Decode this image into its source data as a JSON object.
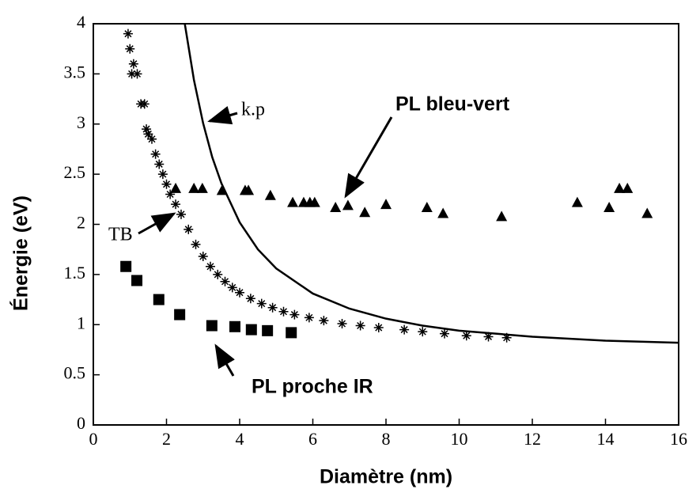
{
  "chart_data": {
    "type": "scatter",
    "xlabel": "Diamètre (nm)",
    "ylabel": "Énergie (eV)",
    "xlim": [
      0,
      16
    ],
    "xticks": [
      0,
      2,
      4,
      6,
      8,
      10,
      12,
      14,
      16
    ],
    "ylim": [
      0,
      4
    ],
    "yticks": [
      0,
      0.5,
      1,
      1.5,
      2,
      2.5,
      3,
      3.5,
      4
    ],
    "series": [
      {
        "name": "k.p",
        "color": "#000000",
        "marker": "line",
        "x": [
          2.5,
          2.75,
          3,
          3.25,
          3.5,
          4,
          4.5,
          5,
          6,
          7,
          8,
          9,
          10,
          12,
          14,
          16
        ],
        "values": [
          4.0,
          3.44,
          3.01,
          2.67,
          2.41,
          2.02,
          1.75,
          1.56,
          1.31,
          1.16,
          1.06,
          0.99,
          0.94,
          0.88,
          0.84,
          0.82
        ]
      },
      {
        "name": "PL bleu-vert",
        "color": "#000000",
        "marker": "triangle",
        "x": [
          2.25,
          2.75,
          2.98,
          3.52,
          4.15,
          4.24,
          4.84,
          5.45,
          5.75,
          5.92,
          6.05,
          6.62,
          6.96,
          7.42,
          8.0,
          9.12,
          9.56,
          11.16,
          13.23,
          14.1,
          14.38,
          14.6,
          15.14
        ],
        "values": [
          2.36,
          2.36,
          2.36,
          2.34,
          2.34,
          2.34,
          2.29,
          2.22,
          2.22,
          2.22,
          2.22,
          2.17,
          2.19,
          2.12,
          2.2,
          2.17,
          2.11,
          2.08,
          2.22,
          2.17,
          2.36,
          2.36,
          2.11
        ]
      },
      {
        "name": "TB",
        "color": "#000000",
        "marker": "star",
        "x": [
          0.95,
          1.0,
          1.05,
          1.1,
          1.2,
          1.3,
          1.4,
          1.45,
          1.5,
          1.6,
          1.7,
          1.8,
          1.9,
          2.0,
          2.1,
          2.25,
          2.4,
          2.6,
          2.8,
          3.0,
          3.2,
          3.4,
          3.6,
          3.8,
          4.0,
          4.3,
          4.6,
          4.9,
          5.2,
          5.5,
          5.9,
          6.3,
          6.8,
          7.3,
          7.8,
          8.5,
          9.0,
          9.6,
          10.2,
          10.8,
          11.3
        ],
        "values": [
          3.9,
          3.75,
          3.5,
          3.6,
          3.5,
          3.2,
          3.2,
          2.95,
          2.9,
          2.85,
          2.7,
          2.6,
          2.5,
          2.4,
          2.3,
          2.2,
          2.1,
          1.95,
          1.8,
          1.68,
          1.58,
          1.5,
          1.43,
          1.37,
          1.32,
          1.26,
          1.21,
          1.17,
          1.13,
          1.1,
          1.07,
          1.04,
          1.01,
          0.99,
          0.97,
          0.95,
          0.93,
          0.91,
          0.89,
          0.88,
          0.87
        ]
      },
      {
        "name": "PL proche IR",
        "color": "#000000",
        "marker": "square",
        "x": [
          0.89,
          1.19,
          1.79,
          2.36,
          3.24,
          3.87,
          4.32,
          4.76,
          5.41
        ],
        "values": [
          1.58,
          1.44,
          1.25,
          1.1,
          0.99,
          0.98,
          0.95,
          0.94,
          0.92
        ]
      }
    ]
  }
}
